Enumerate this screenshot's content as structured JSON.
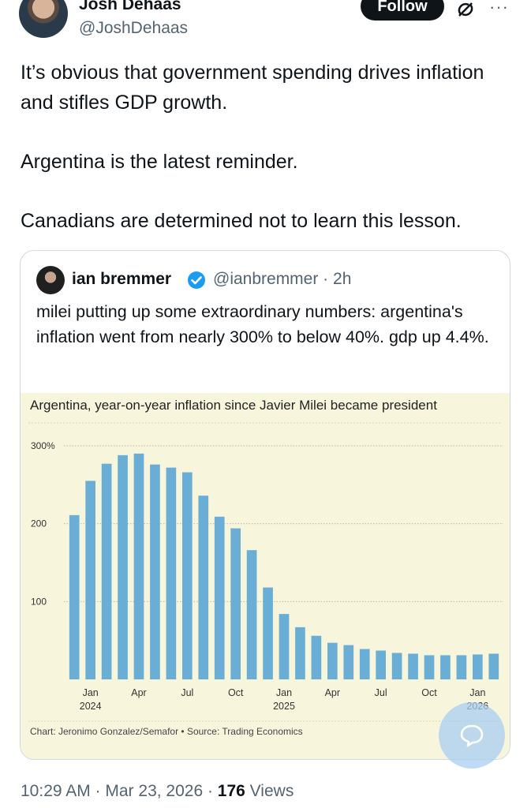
{
  "author": {
    "name": "Josh Dehaas",
    "handle": "@JoshDehaas",
    "follow_label": "Follow",
    "more_label": "···"
  },
  "tweet": {
    "lines": [
      "It’s obvious that government spending drives inflation and stifles GDP growth.",
      "Argentina is the latest reminder.",
      "Canadians are determined not to learn this lesson."
    ]
  },
  "quote": {
    "name": "ian bremmer",
    "handle": "@ianbremmer · 2h",
    "text": "milei putting up some extraordinary numbers: argentina's inflation went from nearly 300% to below 40%. gdp up 4.4%."
  },
  "chart_data": {
    "type": "bar",
    "title": "Argentina, year-on-year inflation since Javier Milei became president",
    "footnote": "Chart: Jeronimo Gonzalez/Semafor • Source: Trading Economics",
    "ylabel": "",
    "ylim": [
      0,
      300
    ],
    "y_ticks": [
      "300%",
      "200",
      "100"
    ],
    "y_tick_values": [
      300,
      200,
      100
    ],
    "x_tick_labels": [
      {
        "index": 1,
        "label": "Jan",
        "sub": "2024"
      },
      {
        "index": 4,
        "label": "Apr",
        "sub": ""
      },
      {
        "index": 7,
        "label": "Jul",
        "sub": ""
      },
      {
        "index": 10,
        "label": "Oct",
        "sub": ""
      },
      {
        "index": 13,
        "label": "Jan",
        "sub": "2025"
      },
      {
        "index": 16,
        "label": "Apr",
        "sub": ""
      },
      {
        "index": 19,
        "label": "Jul",
        "sub": ""
      },
      {
        "index": 22,
        "label": "Oct",
        "sub": ""
      },
      {
        "index": 25,
        "label": "Jan",
        "sub": "2026"
      }
    ],
    "categories": [
      "Dec 2023",
      "Jan 2024",
      "Feb 2024",
      "Mar 2024",
      "Apr 2024",
      "May 2024",
      "Jun 2024",
      "Jul 2024",
      "Aug 2024",
      "Sep 2024",
      "Oct 2024",
      "Nov 2024",
      "Dec 2024",
      "Jan 2025",
      "Feb 2025",
      "Mar 2025",
      "Apr 2025",
      "May 2025",
      "Jun 2025",
      "Jul 2025",
      "Aug 2025",
      "Sep 2025",
      "Oct 2025",
      "Nov 2025",
      "Dec 2025",
      "Jan 2026",
      "Feb 2026"
    ],
    "values": [
      211,
      255,
      277,
      288,
      290,
      276,
      272,
      266,
      236,
      209,
      194,
      166,
      118,
      84,
      67,
      56,
      47,
      44,
      39,
      37,
      34,
      33,
      31,
      31,
      31,
      32,
      33
    ]
  },
  "footer": {
    "timestamp": "10:29 AM · Mar 23, 2026 · ",
    "views_count": "176",
    "views_label": " Views"
  },
  "colors": {
    "bar": "#6aaed6",
    "panel": "#f8f5dd",
    "verified": "#1d9bf0"
  }
}
